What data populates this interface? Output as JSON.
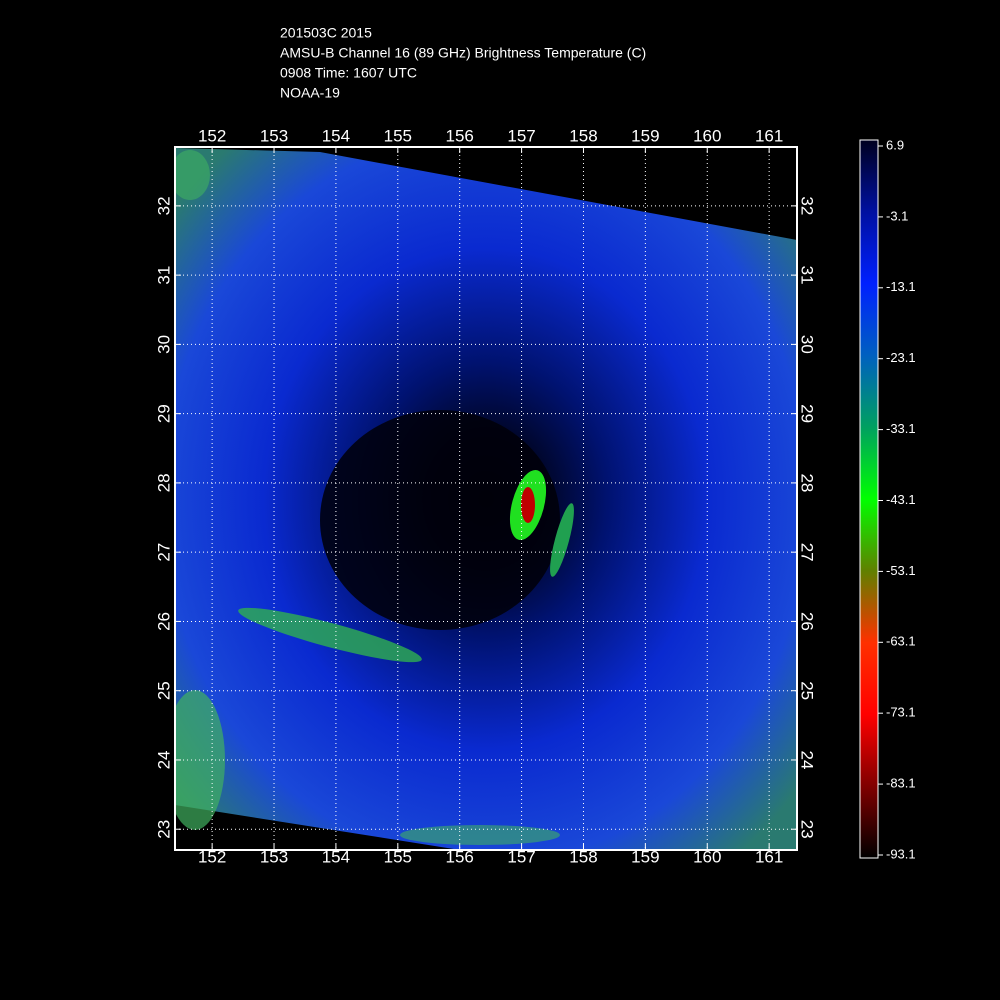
{
  "chart_data": {
    "type": "map",
    "title_lines": [
      "201503C 2015",
      "AMSU-B Channel 16 (89 GHz) Brightness Temperature (C)",
      "0908 Time: 1607 UTC",
      "NOAA-19"
    ],
    "xlim": [
      151.4,
      161.45
    ],
    "xticks": [
      152,
      153,
      154,
      155,
      156,
      157,
      158,
      159,
      160,
      161
    ],
    "ylim": [
      22.7,
      32.85
    ],
    "yticks": [
      23,
      24,
      25,
      26,
      27,
      28,
      29,
      30,
      31,
      32
    ],
    "grid": true,
    "clim": [
      -93.1,
      6.9
    ],
    "cticks": [
      6.9,
      -3.1,
      -13.1,
      -23.1,
      -33.1,
      -43.1,
      -53.1,
      -63.1,
      -73.1,
      -83.1,
      -93.1
    ]
  }
}
